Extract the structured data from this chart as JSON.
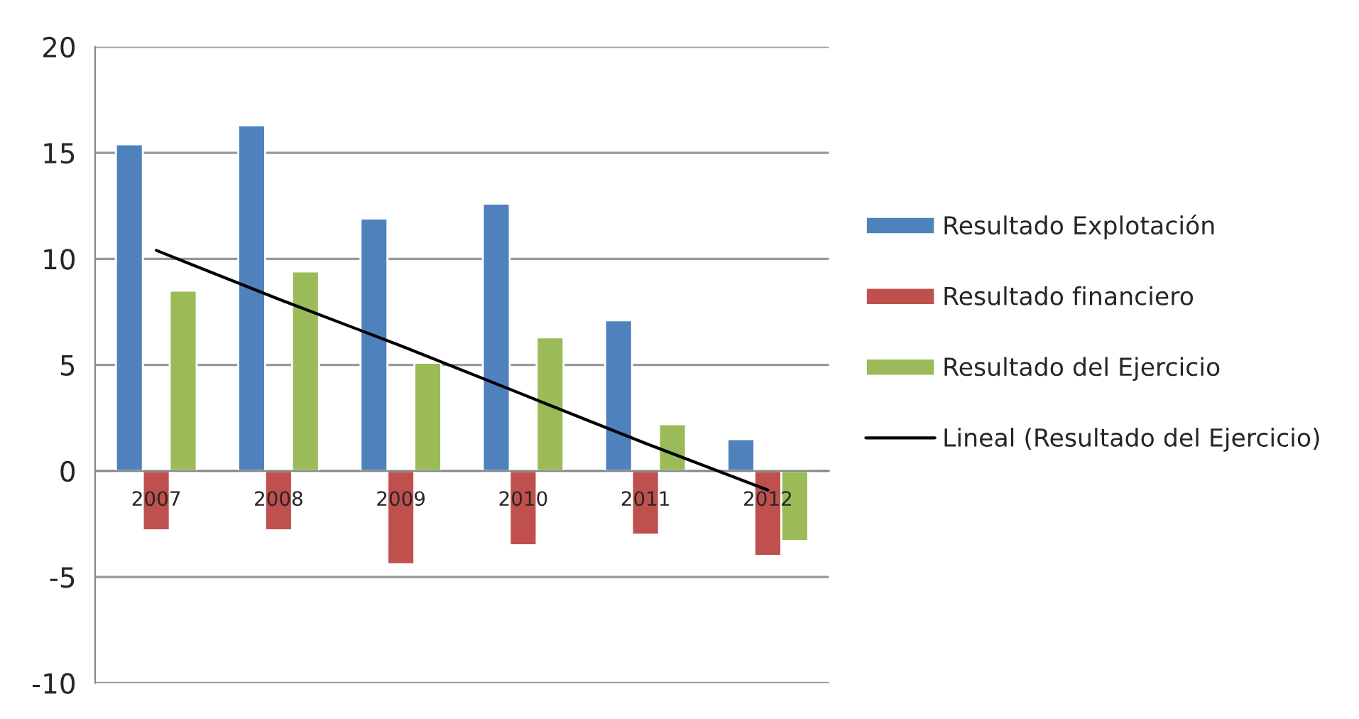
{
  "chart_data": {
    "type": "bar",
    "categories": [
      "2007",
      "2008",
      "2009",
      "2010",
      "2011",
      "2012"
    ],
    "series": [
      {
        "name": "Resultado Explotación",
        "color": "#4f81bd",
        "values": [
          15.4,
          16.3,
          11.9,
          12.6,
          7.1,
          1.5
        ]
      },
      {
        "name": "Resultado financiero",
        "color": "#c0504d",
        "values": [
          -2.8,
          -2.8,
          -4.4,
          -3.5,
          -3.0,
          -4.0
        ]
      },
      {
        "name": "Resultado del Ejercicio",
        "color": "#9bbb59",
        "values": [
          8.5,
          9.4,
          5.1,
          6.3,
          2.2,
          -3.3
        ]
      },
      {
        "name": "Lineal (Resultado del Ejercicio)",
        "color": "#000000",
        "type": "line",
        "values": [
          10.4,
          8.1,
          5.9,
          3.6,
          1.3,
          -0.9
        ]
      }
    ],
    "ylim": [
      -10,
      20
    ],
    "yticks": [
      -10,
      -5,
      0,
      5,
      10,
      15,
      20
    ],
    "grid": "y",
    "legend": "right"
  }
}
